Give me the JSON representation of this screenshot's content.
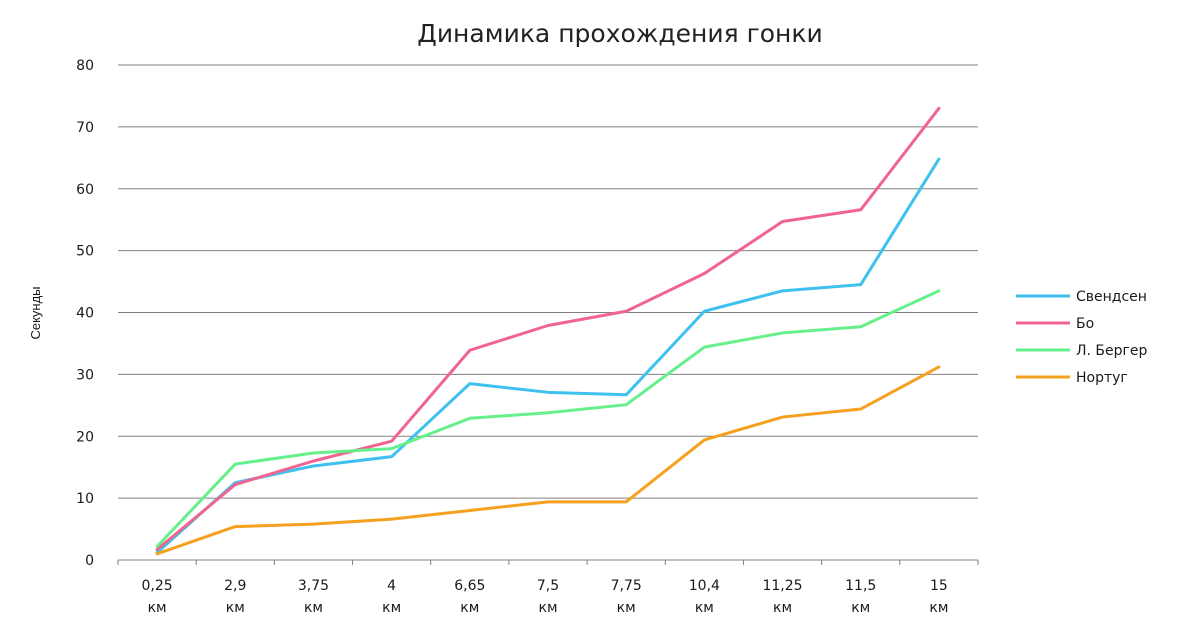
{
  "chart_data": {
    "type": "line",
    "title": "Динамика прохождения гонки",
    "xlabel": "",
    "ylabel": "Секунды",
    "categories": [
      [
        "0,25",
        "км"
      ],
      [
        "2,9",
        "км"
      ],
      [
        "3,75",
        "км"
      ],
      [
        "4",
        "км"
      ],
      [
        "6,65",
        "км"
      ],
      [
        "7,5",
        "км"
      ],
      [
        "7,75",
        "км"
      ],
      [
        "10,4",
        "км"
      ],
      [
        "11,25",
        "км"
      ],
      [
        "11,5",
        "км"
      ],
      [
        "15",
        "км"
      ]
    ],
    "ylim": [
      0,
      80
    ],
    "yticks": [
      0,
      10,
      20,
      30,
      40,
      50,
      60,
      70,
      80
    ],
    "grid": true,
    "legend_position": "right",
    "series": [
      {
        "name": "Свендсен",
        "color": "#3fc1f0",
        "values": [
          1.2,
          12.5,
          15.2,
          16.7,
          28.5,
          27.1,
          26.7,
          40.2,
          43.5,
          44.5,
          64.8
        ]
      },
      {
        "name": "Бо",
        "color": "#f0648f",
        "values": [
          1.7,
          12.2,
          16.0,
          19.2,
          33.9,
          37.9,
          40.2,
          46.3,
          54.7,
          56.6,
          73.0
        ]
      },
      {
        "name": "Л. Бергер",
        "color": "#66f08c",
        "values": [
          2.2,
          15.5,
          17.3,
          18.0,
          22.9,
          23.8,
          25.1,
          34.4,
          36.7,
          37.7,
          43.5
        ]
      },
      {
        "name": "Нортуг",
        "color": "#f5a01e",
        "values": [
          1.0,
          5.4,
          5.8,
          6.6,
          8.0,
          9.4,
          9.4,
          19.4,
          23.1,
          24.4,
          31.2
        ]
      }
    ]
  }
}
